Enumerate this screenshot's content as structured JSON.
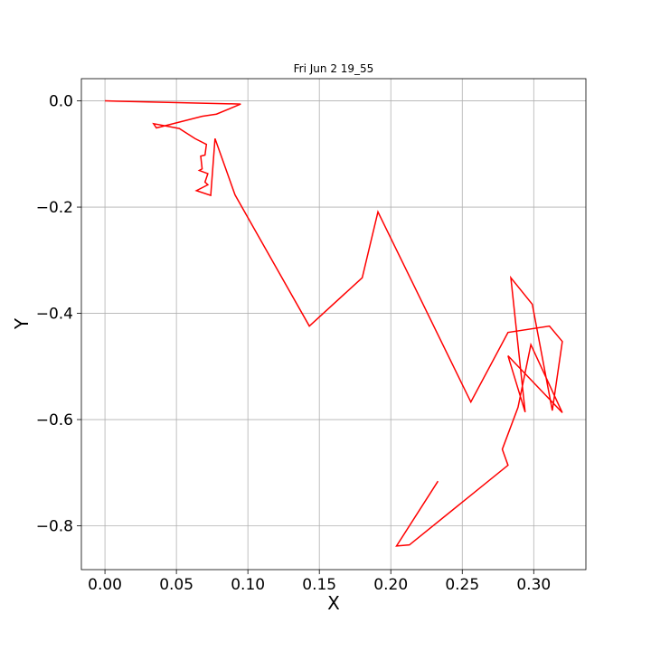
{
  "chart_data": {
    "type": "line",
    "title": "Fri Jun  2 19_55",
    "xlabel": "X",
    "ylabel": "Y",
    "xlim": [
      -0.0165,
      0.3365
    ],
    "ylim": [
      -0.8825,
      0.0418
    ],
    "grid": true,
    "xticks": [
      0.0,
      0.05,
      0.1,
      0.15,
      0.2,
      0.25,
      0.3
    ],
    "xtick_labels": [
      "0.00",
      "0.05",
      "0.10",
      "0.15",
      "0.20",
      "0.25",
      "0.30"
    ],
    "yticks": [
      0.0,
      -0.2,
      -0.4,
      -0.6,
      -0.8
    ],
    "ytick_labels": [
      "0.0",
      "−0.2",
      "−0.4",
      "−0.6",
      "−0.8"
    ],
    "series": [
      {
        "color": "#ff0000",
        "x": [
          0.0,
          0.095,
          0.078,
          0.068,
          0.036,
          0.034,
          0.052,
          0.063,
          0.071,
          0.07,
          0.067,
          0.068,
          0.066,
          0.072,
          0.07,
          0.072,
          0.064,
          0.074,
          0.077,
          0.091,
          0.143,
          0.18,
          0.191,
          0.256,
          0.282,
          0.311,
          0.32,
          0.313,
          0.299,
          0.284,
          0.294,
          0.282,
          0.32,
          0.298,
          0.289,
          0.278,
          0.282,
          0.213,
          0.204,
          0.233
        ],
        "y": [
          0.0,
          -0.006,
          -0.025,
          -0.029,
          -0.051,
          -0.043,
          -0.052,
          -0.071,
          -0.082,
          -0.102,
          -0.104,
          -0.128,
          -0.131,
          -0.137,
          -0.153,
          -0.158,
          -0.169,
          -0.178,
          -0.071,
          -0.177,
          -0.424,
          -0.333,
          -0.209,
          -0.567,
          -0.436,
          -0.424,
          -0.453,
          -0.583,
          -0.383,
          -0.333,
          -0.586,
          -0.48,
          -0.587,
          -0.459,
          -0.577,
          -0.656,
          -0.686,
          -0.836,
          -0.838,
          -0.716
        ]
      }
    ]
  }
}
